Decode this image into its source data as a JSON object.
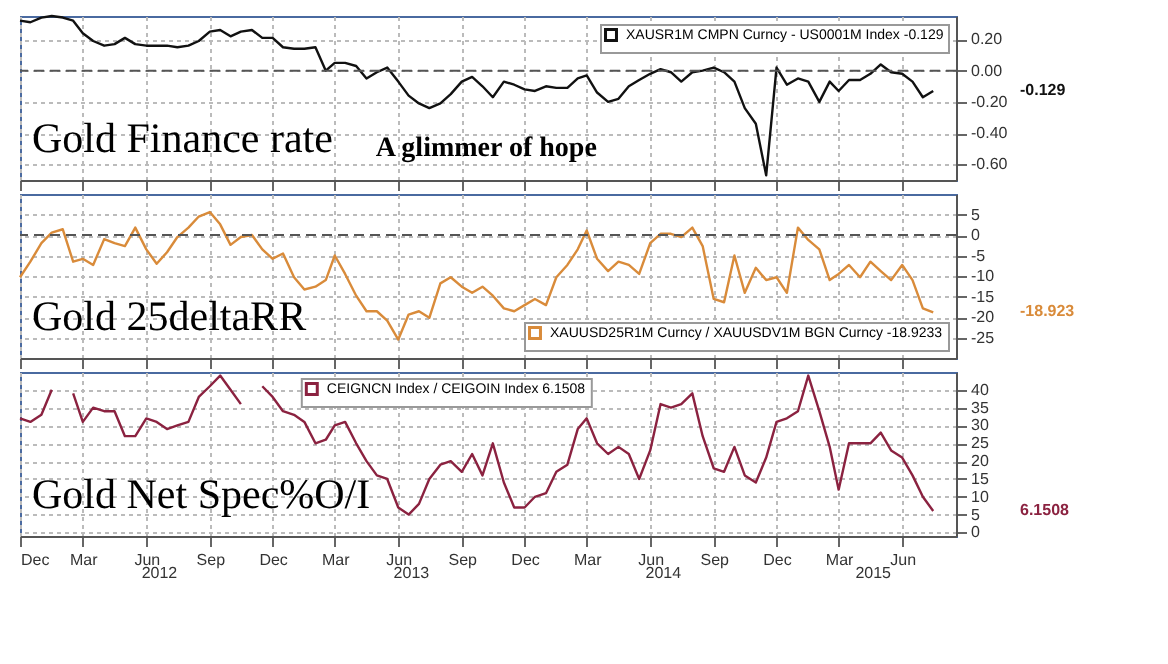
{
  "chart_data": [
    {
      "type": "line",
      "annotations": [
        "Gold Finance rate",
        "A glimmer of hope",
        "-0.129"
      ],
      "x": [
        "2011-12-01",
        "2011-12-16",
        "2012-01-01",
        "2012-01-16",
        "2012-02-01",
        "2012-02-16",
        "2012-03-01",
        "2012-03-16",
        "2012-04-01",
        "2012-04-16",
        "2012-05-01",
        "2012-05-16",
        "2012-06-01",
        "2012-06-16",
        "2012-07-01",
        "2012-07-16",
        "2012-08-01",
        "2012-08-16",
        "2012-09-01",
        "2012-09-16",
        "2012-10-01",
        "2012-10-16",
        "2012-11-01",
        "2012-11-16",
        "2012-12-01",
        "2012-12-16",
        "2013-01-01",
        "2013-01-16",
        "2013-02-01",
        "2013-02-16",
        "2013-03-01",
        "2013-03-16",
        "2013-04-01",
        "2013-04-16",
        "2013-05-01",
        "2013-05-16",
        "2013-06-01",
        "2013-06-16",
        "2013-07-01",
        "2013-07-16",
        "2013-08-01",
        "2013-08-16",
        "2013-09-01",
        "2013-09-16",
        "2013-10-01",
        "2013-10-16",
        "2013-11-01",
        "2013-11-16",
        "2013-12-01",
        "2013-12-16",
        "2014-01-01",
        "2014-01-16",
        "2014-02-01",
        "2014-02-16",
        "2014-03-01",
        "2014-03-16",
        "2014-04-01",
        "2014-04-16",
        "2014-05-01",
        "2014-05-16",
        "2014-06-01",
        "2014-06-16",
        "2014-07-01",
        "2014-07-16",
        "2014-08-01",
        "2014-08-16",
        "2014-09-01",
        "2014-09-16",
        "2014-10-01",
        "2014-10-16",
        "2014-11-01",
        "2014-11-16",
        "2014-12-01",
        "2014-12-16",
        "2015-01-01",
        "2015-01-16",
        "2015-02-01",
        "2015-02-16",
        "2015-03-01",
        "2015-03-16",
        "2015-04-01",
        "2015-04-16",
        "2015-05-01",
        "2015-05-16",
        "2015-06-01",
        "2015-06-16",
        "2015-07-01",
        "2015-07-16"
      ],
      "series": [
        {
          "name": "XAUSR1M CMPN Curncy - US0001M Index -0.129",
          "color": "#111111",
          "values": [
            0.32,
            0.31,
            0.34,
            0.35,
            0.34,
            0.32,
            0.24,
            0.19,
            0.16,
            0.17,
            0.21,
            0.17,
            0.16,
            0.16,
            0.16,
            0.15,
            0.16,
            0.19,
            0.25,
            0.26,
            0.22,
            0.25,
            0.26,
            0.21,
            0.21,
            0.15,
            0.14,
            0.14,
            0.15,
            0,
            0.05,
            0.05,
            0.03,
            -0.05,
            -0.01,
            0.02,
            -0.07,
            -0.16,
            -0.21,
            -0.24,
            -0.21,
            -0.15,
            -0.07,
            -0.04,
            -0.1,
            -0.17,
            -0.07,
            -0.09,
            -0.12,
            -0.13,
            -0.1,
            -0.11,
            -0.11,
            -0.05,
            -0.03,
            -0.14,
            -0.2,
            -0.18,
            -0.1,
            -0.06,
            -0.02,
            0.01,
            -0.01,
            -0.07,
            -0.01,
            0,
            0.02,
            -0.01,
            -0.07,
            -0.24,
            -0.34,
            -0.67,
            0.02,
            -0.09,
            -0.05,
            -0.07,
            -0.2,
            -0.07,
            -0.13,
            -0.06,
            -0.06,
            -0.02,
            0.04,
            -0.01,
            -0.02,
            -0.07,
            -0.17,
            -0.13
          ]
        }
      ],
      "xlim": [
        "2011-12-01",
        "2015-08-18"
      ],
      "xticks": [
        {
          "value": "2011-12-01",
          "label": null
        },
        {
          "value": "2012-03-01",
          "label": null
        },
        {
          "value": "2012-06-01",
          "label": null
        },
        {
          "value": "2012-09-01",
          "label": null
        },
        {
          "value": "2012-12-01",
          "label": null
        },
        {
          "value": "2013-03-01",
          "label": null
        },
        {
          "value": "2013-06-01",
          "label": null
        },
        {
          "value": "2013-09-01",
          "label": null
        },
        {
          "value": "2013-12-01",
          "label": null
        },
        {
          "value": "2014-03-01",
          "label": null
        },
        {
          "value": "2014-06-01",
          "label": null
        },
        {
          "value": "2014-09-01",
          "label": null
        },
        {
          "value": "2014-12-01",
          "label": null
        },
        {
          "value": "2015-03-01",
          "label": null
        },
        {
          "value": "2015-06-01",
          "label": null
        }
      ],
      "ylim": [
        -0.7,
        0.35
      ],
      "yticks": [
        {
          "value": -0.6,
          "label": "-0.60"
        },
        {
          "value": -0.4,
          "label": "-0.40"
        },
        {
          "value": -0.2,
          "label": "-0.20"
        },
        {
          "value": 0,
          "label": "0.00"
        },
        {
          "value": 0.2,
          "label": "0.20"
        }
      ],
      "ref_lines": [
        {
          "axis": "y",
          "value": 0,
          "color": "#555555",
          "line_style": "dashed"
        }
      ],
      "grid": true,
      "legend": "top right",
      "tick_labels": "y",
      "line_style": "solid"
    },
    {
      "type": "line",
      "annotations": [
        "Gold 25deltaRR",
        "-18.923"
      ],
      "x": [
        "2011-12-01",
        "2011-12-16",
        "2012-01-01",
        "2012-01-16",
        "2012-02-01",
        "2012-02-16",
        "2012-03-01",
        "2012-03-16",
        "2012-04-01",
        "2012-04-16",
        "2012-05-01",
        "2012-05-16",
        "2012-06-01",
        "2012-06-16",
        "2012-07-01",
        "2012-07-16",
        "2012-08-01",
        "2012-08-16",
        "2012-09-01",
        "2012-09-16",
        "2012-10-01",
        "2012-10-16",
        "2012-11-01",
        "2012-11-16",
        "2012-12-01",
        "2012-12-16",
        "2013-01-01",
        "2013-01-16",
        "2013-02-01",
        "2013-02-16",
        "2013-03-01",
        "2013-03-16",
        "2013-04-01",
        "2013-04-16",
        "2013-05-01",
        "2013-05-16",
        "2013-06-01",
        "2013-06-16",
        "2013-07-01",
        "2013-07-16",
        "2013-08-01",
        "2013-08-16",
        "2013-09-01",
        "2013-09-16",
        "2013-10-01",
        "2013-10-16",
        "2013-11-01",
        "2013-11-16",
        "2013-12-01",
        "2013-12-16",
        "2014-01-01",
        "2014-01-16",
        "2014-02-01",
        "2014-02-16",
        "2014-03-01",
        "2014-03-16",
        "2014-04-01",
        "2014-04-16",
        "2014-05-01",
        "2014-05-16",
        "2014-06-01",
        "2014-06-16",
        "2014-07-01",
        "2014-07-16",
        "2014-08-01",
        "2014-08-16",
        "2014-09-01",
        "2014-09-16",
        "2014-10-01",
        "2014-10-16",
        "2014-11-01",
        "2014-11-16",
        "2014-12-01",
        "2014-12-16",
        "2015-01-01",
        "2015-01-16",
        "2015-02-01",
        "2015-02-16",
        "2015-03-01",
        "2015-03-16",
        "2015-04-01",
        "2015-04-16",
        "2015-05-01",
        "2015-05-16",
        "2015-06-01",
        "2015-06-16",
        "2015-07-01",
        "2015-07-16"
      ],
      "series": [
        {
          "name": "XAUUSD25R1M Curncy / XAUUSDV1M BGN Curncy -18.9233",
          "color": "#d98b3a",
          "values": [
            -10.3,
            -6.5,
            -2,
            0.6,
            1.4,
            -6.5,
            -5.8,
            -7.3,
            -1,
            -2,
            -2.7,
            1.8,
            -3.5,
            -7,
            -4.2,
            -0.5,
            1.8,
            4.5,
            5.6,
            2.6,
            -2.4,
            -0.5,
            0,
            -3.5,
            -5.8,
            -4.5,
            -10.3,
            -13.3,
            -12.6,
            -11,
            -5,
            -9.5,
            -14.8,
            -18.6,
            -18.6,
            -20.9,
            -25.5,
            -19.4,
            -18.6,
            -20.2,
            -11.8,
            -10.3,
            -12.6,
            -14.1,
            -12.6,
            -14.8,
            -17.9,
            -18.6,
            -17.1,
            -15.6,
            -17.1,
            -10.3,
            -7.3,
            -3.5,
            1.1,
            -5.8,
            -8.8,
            -6.5,
            -7.3,
            -9.5,
            -2,
            0.3,
            0.3,
            -0.5,
            1.8,
            -2.7,
            -15.6,
            -16.4,
            -5,
            -14.1,
            -8,
            -11,
            -10.3,
            -14.1,
            1.8,
            -1.2,
            -3.5,
            -11,
            -9.5,
            -7.3,
            -10.3,
            -6.5,
            -8.8,
            -11,
            -7.3,
            -11,
            -17.9,
            -18.9
          ]
        }
      ],
      "xlim": [
        "2011-12-01",
        "2015-08-18"
      ],
      "xticks": [
        {
          "value": "2011-12-01",
          "label": null
        },
        {
          "value": "2012-03-01",
          "label": null
        },
        {
          "value": "2012-06-01",
          "label": null
        },
        {
          "value": "2012-09-01",
          "label": null
        },
        {
          "value": "2012-12-01",
          "label": null
        },
        {
          "value": "2013-03-01",
          "label": null
        },
        {
          "value": "2013-06-01",
          "label": null
        },
        {
          "value": "2013-09-01",
          "label": null
        },
        {
          "value": "2013-12-01",
          "label": null
        },
        {
          "value": "2014-03-01",
          "label": null
        },
        {
          "value": "2014-06-01",
          "label": null
        },
        {
          "value": "2014-09-01",
          "label": null
        },
        {
          "value": "2014-12-01",
          "label": null
        },
        {
          "value": "2015-03-01",
          "label": null
        },
        {
          "value": "2015-06-01",
          "label": null
        }
      ],
      "ylim": [
        -30,
        10
      ],
      "yticks": [
        -25,
        -20,
        -15,
        -10,
        -5,
        0,
        5
      ],
      "ref_lines": [
        {
          "axis": "y",
          "value": 0,
          "color": "#555555",
          "line_style": "dashed"
        }
      ],
      "grid": true,
      "legend": "bottom right",
      "tick_labels": "y",
      "line_style": "solid"
    },
    {
      "type": "line",
      "annotations": [
        "Gold Net Spec%O/I",
        "6.1508"
      ],
      "x": [
        "2011-12-01",
        "2011-12-16",
        "2012-01-01",
        "2012-01-16",
        "2012-02-01",
        "2012-02-16",
        "2012-03-01",
        "2012-03-16",
        "2012-04-01",
        "2012-04-16",
        "2012-05-01",
        "2012-05-16",
        "2012-06-01",
        "2012-06-16",
        "2012-07-01",
        "2012-07-16",
        "2012-08-01",
        "2012-08-16",
        "2012-09-01",
        "2012-09-16",
        "2012-10-01",
        "2012-10-16",
        "2012-11-01",
        "2012-11-16",
        "2012-12-01",
        "2012-12-16",
        "2013-01-01",
        "2013-01-16",
        "2013-02-01",
        "2013-02-16",
        "2013-03-01",
        "2013-03-16",
        "2013-04-01",
        "2013-04-16",
        "2013-05-01",
        "2013-05-16",
        "2013-06-01",
        "2013-06-16",
        "2013-07-01",
        "2013-07-16",
        "2013-08-01",
        "2013-08-16",
        "2013-09-01",
        "2013-09-16",
        "2013-10-01",
        "2013-10-16",
        "2013-11-01",
        "2013-11-16",
        "2013-12-01",
        "2013-12-16",
        "2014-01-01",
        "2014-01-16",
        "2014-02-01",
        "2014-02-16",
        "2014-03-01",
        "2014-03-16",
        "2014-04-01",
        "2014-04-16",
        "2014-05-01",
        "2014-05-16",
        "2014-06-01",
        "2014-06-16",
        "2014-07-01",
        "2014-07-16",
        "2014-08-01",
        "2014-08-16",
        "2014-09-01",
        "2014-09-16",
        "2014-10-01",
        "2014-10-16",
        "2014-11-01",
        "2014-11-16",
        "2014-12-01",
        "2014-12-16",
        "2015-01-01",
        "2015-01-16",
        "2015-02-01",
        "2015-02-16",
        "2015-03-01",
        "2015-03-16",
        "2015-04-01",
        "2015-04-16",
        "2015-05-01",
        "2015-05-16",
        "2015-06-01",
        "2015-06-16",
        "2015-07-01",
        "2015-07-16"
      ],
      "series": [
        {
          "name": "CEIGNCN Index / CEIGOIN Index 6.1508",
          "color": "#8b2240",
          "values": [
            32,
            31,
            33,
            40,
            null,
            39,
            31,
            35,
            34,
            34,
            27,
            27,
            32,
            31,
            29,
            30,
            31,
            38,
            41,
            44,
            40,
            36,
            null,
            41,
            38,
            34,
            33,
            31,
            25,
            26,
            30,
            31,
            25,
            20,
            16,
            15,
            7,
            5,
            8,
            15,
            19,
            20,
            17,
            22,
            16,
            25,
            14,
            7,
            7,
            10,
            11,
            17,
            19,
            29,
            32,
            25,
            22,
            24,
            22,
            15,
            23,
            36,
            35,
            36,
            39,
            27,
            18,
            17,
            24,
            16,
            14,
            21,
            31,
            32,
            34,
            44,
            34,
            24,
            12,
            25,
            25,
            25,
            28,
            23,
            21,
            16,
            10,
            6
          ]
        }
      ],
      "xlim": [
        "2011-12-01",
        "2015-08-18"
      ],
      "xticks": [
        {
          "value": "2011-12-01",
          "label": "Dec"
        },
        {
          "value": "2012-03-01",
          "label": "Mar"
        },
        {
          "value": "2012-06-01",
          "label": "Jun"
        },
        {
          "value": "2012-09-01",
          "label": "Sep"
        },
        {
          "value": "2012-12-01",
          "label": "Dec"
        },
        {
          "value": "2013-03-01",
          "label": "Mar"
        },
        {
          "value": "2013-06-01",
          "label": "Jun"
        },
        {
          "value": "2013-09-01",
          "label": "Sep"
        },
        {
          "value": "2013-12-01",
          "label": "Dec"
        },
        {
          "value": "2014-03-01",
          "label": "Mar"
        },
        {
          "value": "2014-06-01",
          "label": "Jun"
        },
        {
          "value": "2014-09-01",
          "label": "Sep"
        },
        {
          "value": "2014-12-01",
          "label": "Dec"
        },
        {
          "value": "2015-03-01",
          "label": "Mar"
        },
        {
          "value": "2015-06-01",
          "label": "Jun"
        }
      ],
      "x2lim": [
        "2011-12-01",
        "2015-08-18"
      ],
      "x2ticks": [
        {
          "value": "2012-06-20",
          "label": "2012"
        },
        {
          "value": "2013-06-20",
          "label": "2013"
        },
        {
          "value": "2014-06-20",
          "label": "2014"
        },
        {
          "value": "2015-04-20",
          "label": "2015"
        }
      ],
      "ylim": [
        -1,
        45
      ],
      "yticks": [
        0,
        5,
        10,
        15,
        20,
        25,
        30,
        35,
        40
      ],
      "grid": true,
      "legend": "top",
      "line_style": "solid"
    }
  ]
}
